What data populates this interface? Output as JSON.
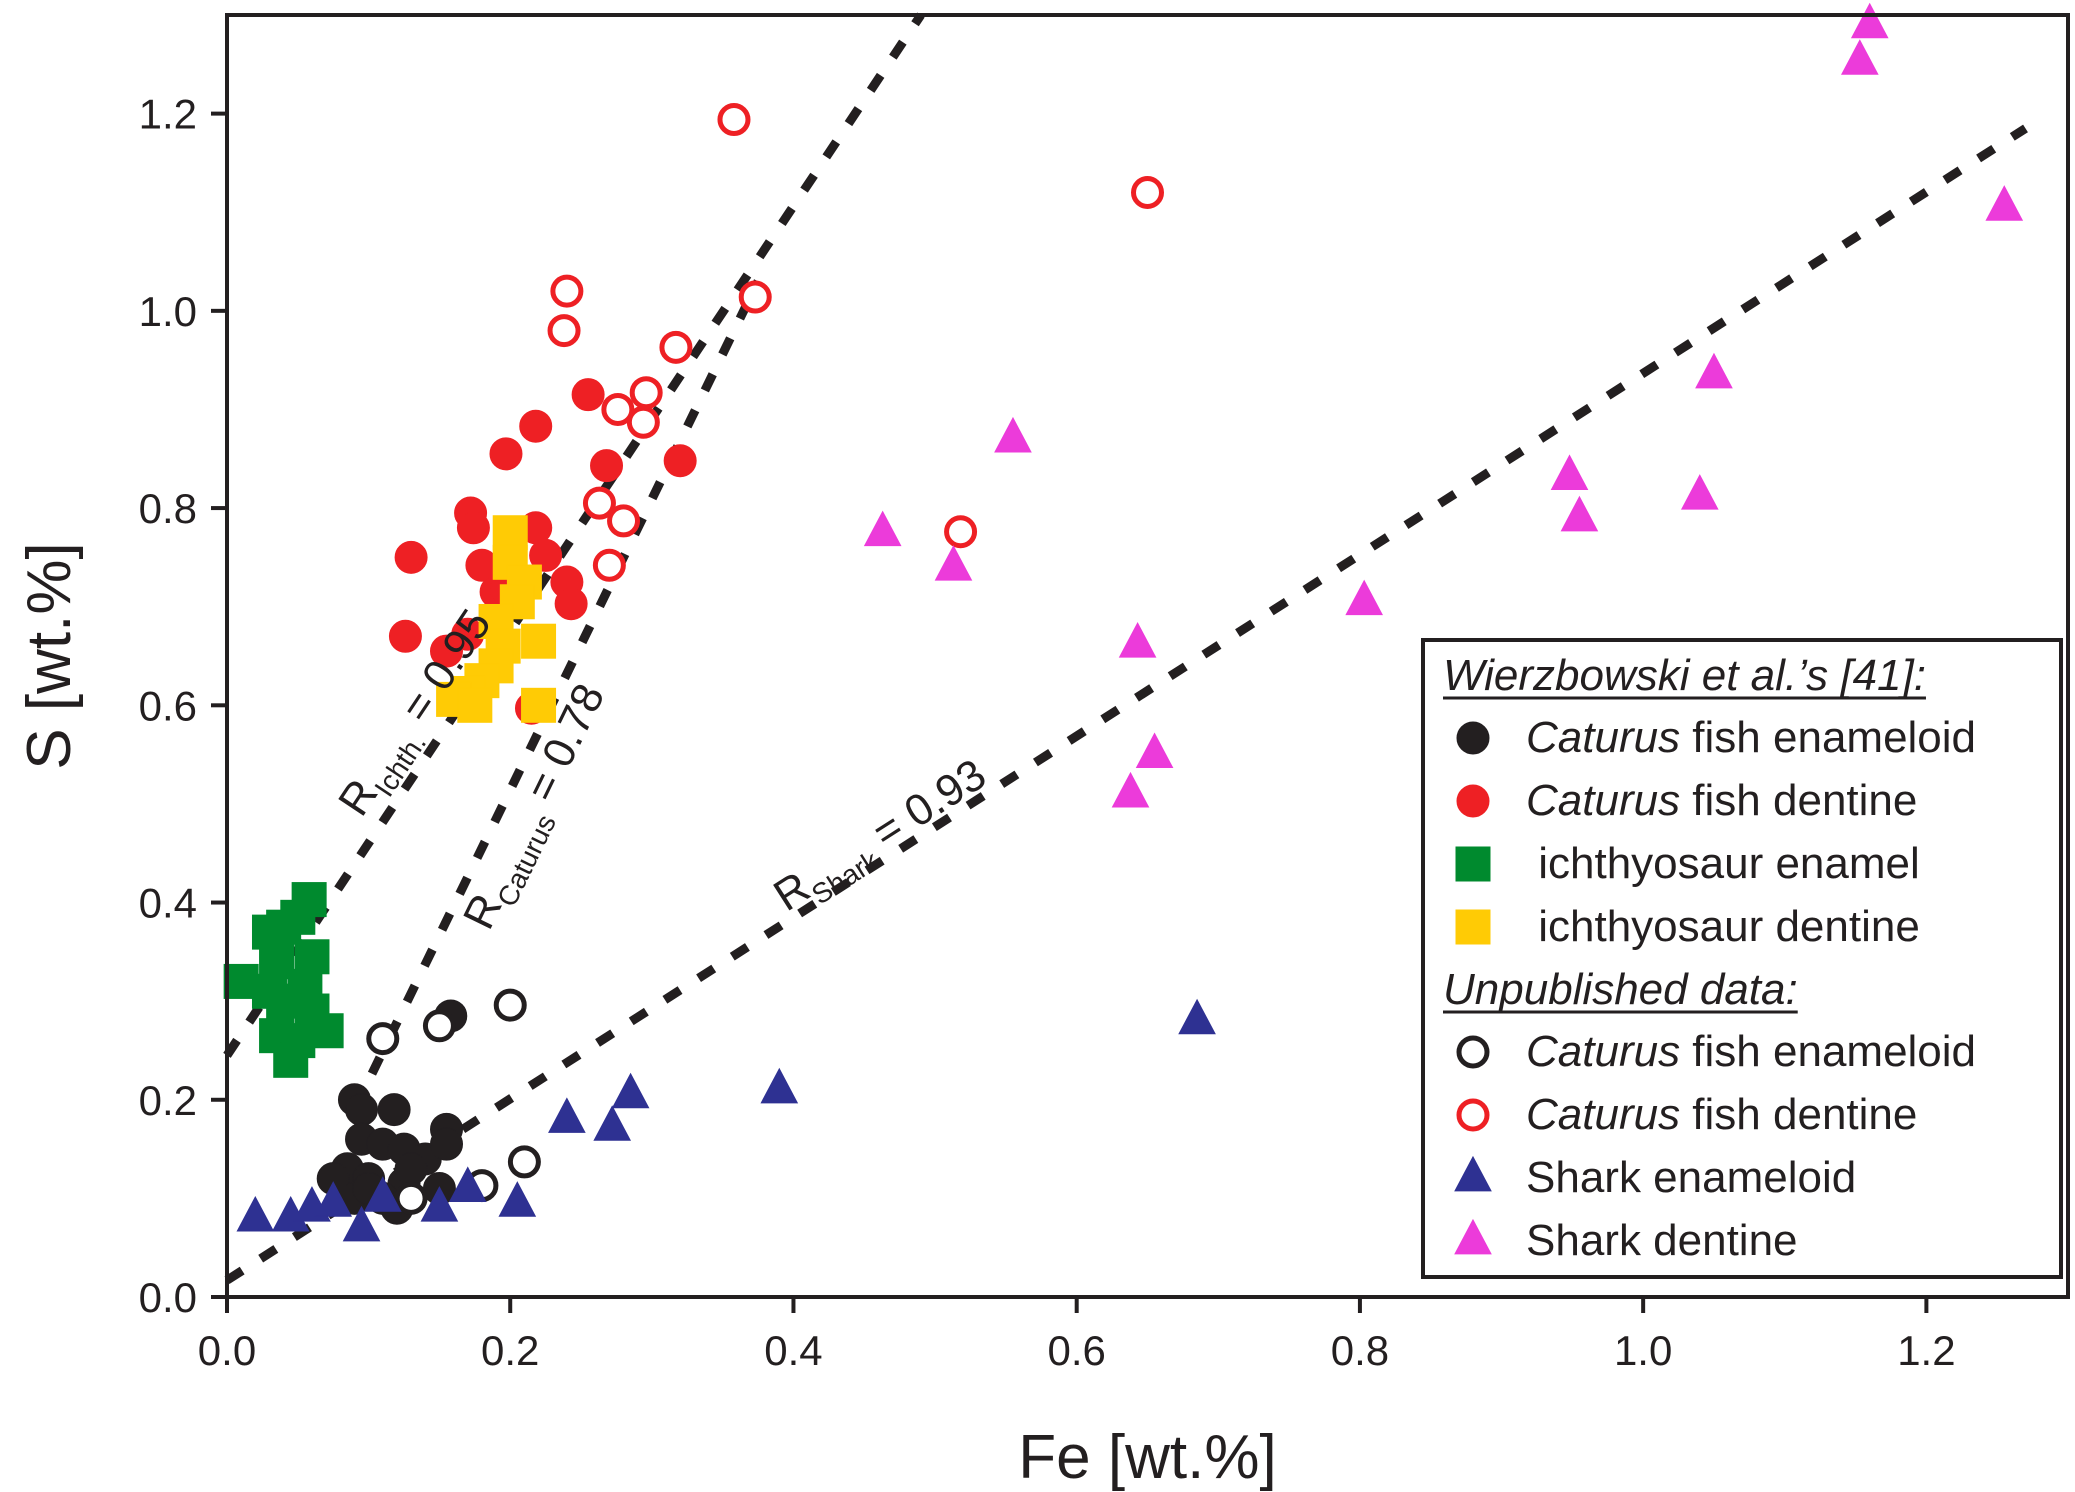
{
  "chart_data": {
    "type": "scatter",
    "xlabel": "Fe [wt.%]",
    "ylabel": "S [wt.%]",
    "xlim": [
      0.0,
      1.3
    ],
    "ylim": [
      0.0,
      1.3
    ],
    "x_ticks": [
      "0.0",
      "0.2",
      "0.4",
      "0.6",
      "0.8",
      "1.0",
      "1.2"
    ],
    "y_ticks": [
      "0.0",
      "0.2",
      "0.4",
      "0.6",
      "0.8",
      "1.0",
      "1.2"
    ],
    "grid": false,
    "legend_position": "bottom-right",
    "legend_groups": [
      {
        "heading": "Wierzbowski et al.’s [41]:",
        "entries": [
          {
            "series": 0,
            "italic": "Caturus",
            "text": " fish enameloid"
          },
          {
            "series": 1,
            "italic": "Caturus",
            "text": " fish dentine"
          },
          {
            "series": 2,
            "italic": "",
            "text": " ichthyosaur enamel"
          },
          {
            "series": 3,
            "italic": "",
            "text": " ichthyosaur dentine"
          }
        ]
      },
      {
        "heading": "Unpublished data:",
        "entries": [
          {
            "series": 4,
            "italic": "Caturus",
            "text": " fish enameloid"
          },
          {
            "series": 5,
            "italic": "Caturus",
            "text": " fish dentine"
          },
          {
            "series": 6,
            "italic": "",
            "text": "Shark enameloid"
          },
          {
            "series": 7,
            "italic": "",
            "text": "Shark dentine"
          }
        ]
      }
    ],
    "series": [
      {
        "marker": "circle",
        "fill": "#231f20",
        "stroke": "#231f20",
        "hollow": false,
        "points": [
          [
            0.09,
            0.2
          ],
          [
            0.095,
            0.19
          ],
          [
            0.118,
            0.19
          ],
          [
            0.095,
            0.16
          ],
          [
            0.11,
            0.155
          ],
          [
            0.125,
            0.15
          ],
          [
            0.14,
            0.14
          ],
          [
            0.155,
            0.17
          ],
          [
            0.155,
            0.155
          ],
          [
            0.085,
            0.13
          ],
          [
            0.075,
            0.12
          ],
          [
            0.1,
            0.12
          ],
          [
            0.125,
            0.115
          ],
          [
            0.09,
            0.1
          ],
          [
            0.11,
            0.1
          ],
          [
            0.12,
            0.09
          ],
          [
            0.1,
            0.11
          ],
          [
            0.13,
            0.13
          ],
          [
            0.15,
            0.11
          ],
          [
            0.158,
            0.285
          ]
        ]
      },
      {
        "marker": "circle",
        "fill": "#ee2024",
        "stroke": "#ee2024",
        "hollow": false,
        "points": [
          [
            0.13,
            0.75
          ],
          [
            0.126,
            0.67
          ],
          [
            0.155,
            0.655
          ],
          [
            0.17,
            0.672
          ],
          [
            0.172,
            0.795
          ],
          [
            0.174,
            0.78
          ],
          [
            0.18,
            0.742
          ],
          [
            0.19,
            0.715
          ],
          [
            0.197,
            0.718
          ],
          [
            0.197,
            0.855
          ],
          [
            0.218,
            0.883
          ],
          [
            0.218,
            0.78
          ],
          [
            0.225,
            0.752
          ],
          [
            0.24,
            0.725
          ],
          [
            0.243,
            0.703
          ],
          [
            0.255,
            0.915
          ],
          [
            0.268,
            0.843
          ],
          [
            0.32,
            0.848
          ],
          [
            0.215,
            0.597
          ]
        ]
      },
      {
        "marker": "square",
        "fill": "#008a2e",
        "stroke": "#008a2e",
        "hollow": false,
        "points": [
          [
            0.058,
            0.403
          ],
          [
            0.05,
            0.385
          ],
          [
            0.04,
            0.375
          ],
          [
            0.03,
            0.37
          ],
          [
            0.06,
            0.345
          ],
          [
            0.035,
            0.34
          ],
          [
            0.01,
            0.32
          ],
          [
            0.03,
            0.31
          ],
          [
            0.055,
            0.315
          ],
          [
            0.04,
            0.3
          ],
          [
            0.06,
            0.29
          ],
          [
            0.07,
            0.27
          ],
          [
            0.035,
            0.265
          ],
          [
            0.05,
            0.26
          ],
          [
            0.045,
            0.24
          ]
        ]
      },
      {
        "marker": "square",
        "fill": "#ffcb05",
        "stroke": "#ffcb05",
        "hollow": false,
        "points": [
          [
            0.2,
            0.775
          ],
          [
            0.2,
            0.745
          ],
          [
            0.21,
            0.725
          ],
          [
            0.205,
            0.705
          ],
          [
            0.19,
            0.685
          ],
          [
            0.22,
            0.665
          ],
          [
            0.195,
            0.66
          ],
          [
            0.19,
            0.64
          ],
          [
            0.18,
            0.625
          ],
          [
            0.17,
            0.612
          ],
          [
            0.16,
            0.606
          ],
          [
            0.22,
            0.6
          ],
          [
            0.175,
            0.6
          ]
        ]
      },
      {
        "marker": "circle",
        "fill": "#ffffff",
        "stroke": "#231f20",
        "hollow": true,
        "points": [
          [
            0.11,
            0.262
          ],
          [
            0.15,
            0.275
          ],
          [
            0.2,
            0.296
          ],
          [
            0.21,
            0.137
          ],
          [
            0.18,
            0.113
          ],
          [
            0.13,
            0.1
          ]
        ]
      },
      {
        "marker": "circle",
        "fill": "#ffffff",
        "stroke": "#ee2024",
        "hollow": true,
        "points": [
          [
            0.358,
            1.194
          ],
          [
            0.65,
            1.12
          ],
          [
            0.24,
            1.02
          ],
          [
            0.238,
            0.98
          ],
          [
            0.373,
            1.014
          ],
          [
            0.317,
            0.963
          ],
          [
            0.296,
            0.917
          ],
          [
            0.276,
            0.9
          ],
          [
            0.294,
            0.887
          ],
          [
            0.263,
            0.805
          ],
          [
            0.28,
            0.787
          ],
          [
            0.27,
            0.742
          ],
          [
            0.518,
            0.776
          ]
        ]
      },
      {
        "marker": "triangle",
        "fill": "#2e3192",
        "stroke": "#2e3192",
        "hollow": false,
        "points": [
          [
            0.02,
            0.08
          ],
          [
            0.045,
            0.08
          ],
          [
            0.06,
            0.09
          ],
          [
            0.075,
            0.095
          ],
          [
            0.095,
            0.07
          ],
          [
            0.11,
            0.1
          ],
          [
            0.15,
            0.09
          ],
          [
            0.17,
            0.11
          ],
          [
            0.205,
            0.095
          ],
          [
            0.24,
            0.18
          ],
          [
            0.272,
            0.172
          ],
          [
            0.285,
            0.205
          ],
          [
            0.39,
            0.21
          ],
          [
            0.685,
            0.28
          ]
        ]
      },
      {
        "marker": "triangle",
        "fill": "#ec3bda",
        "stroke": "#ec3bda",
        "hollow": false,
        "points": [
          [
            1.16,
            1.29
          ],
          [
            1.153,
            1.253
          ],
          [
            1.255,
            1.105
          ],
          [
            1.05,
            0.935
          ],
          [
            0.948,
            0.832
          ],
          [
            0.955,
            0.79
          ],
          [
            1.04,
            0.812
          ],
          [
            0.463,
            0.775
          ],
          [
            0.555,
            0.87
          ],
          [
            0.513,
            0.74
          ],
          [
            0.803,
            0.705
          ],
          [
            0.643,
            0.662
          ],
          [
            0.655,
            0.55
          ],
          [
            0.638,
            0.51
          ]
        ]
      }
    ],
    "fit_lines": [
      {
        "name": "Ichth.",
        "label_main": "R",
        "label_sub": "Ichth.",
        "label_value": " = 0.95",
        "x1": 0.0,
        "y1": 0.245,
        "x2": 0.49,
        "y2": 1.3,
        "label_at": [
          0.095,
          0.485
        ]
      },
      {
        "name": "Caturus",
        "label_main": "R",
        "label_sub": "Caturus",
        "label_value": " = 0.78",
        "x1": 0.09,
        "y1": 0.19,
        "x2": 0.375,
        "y2": 1.03,
        "label_at": [
          0.185,
          0.37
        ]
      },
      {
        "name": "Shark",
        "label_main": "R",
        "label_sub": "Shark",
        "label_value": " = 0.93",
        "x1": 0.0,
        "y1": 0.017,
        "x2": 1.27,
        "y2": 1.185,
        "label_at": [
          0.395,
          0.39
        ]
      }
    ]
  }
}
